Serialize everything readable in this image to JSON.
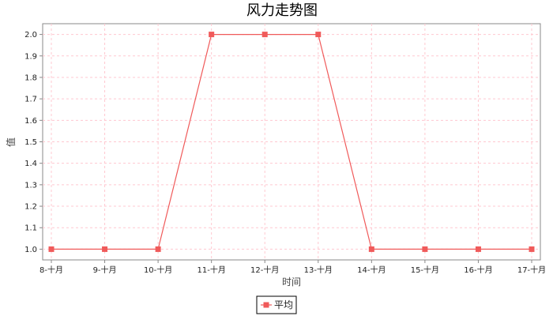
{
  "chart_data": {
    "type": "line",
    "title": "风力走势图",
    "xlabel": "时间",
    "ylabel": "值",
    "categories": [
      "8-十月",
      "9-十月",
      "10-十月",
      "11-十月",
      "12-十月",
      "13-十月",
      "14-十月",
      "15-十月",
      "16-十月",
      "17-十月"
    ],
    "series": [
      {
        "name": "平均",
        "values": [
          1.0,
          1.0,
          1.0,
          2.0,
          2.0,
          2.0,
          1.0,
          1.0,
          1.0,
          1.0
        ],
        "color": "#f05a5a"
      }
    ],
    "ylim": [
      0.95,
      2.05
    ],
    "yticks": [
      1.0,
      1.1,
      1.2,
      1.3,
      1.4,
      1.5,
      1.6,
      1.7,
      1.8,
      1.9,
      2.0
    ],
    "ytick_labels": [
      "1.0",
      "1.1",
      "1.2",
      "1.3",
      "1.4",
      "1.5",
      "1.6",
      "1.7",
      "1.8",
      "1.9",
      "2.0"
    ],
    "grid": true,
    "grid_color": "#ffc8d0",
    "legend_position": "bottom-center"
  }
}
